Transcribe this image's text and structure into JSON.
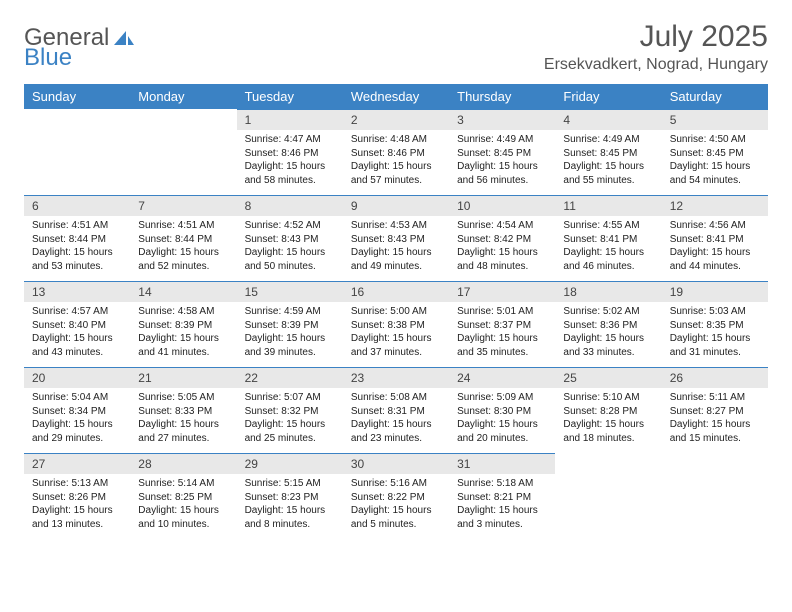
{
  "logo": {
    "text1": "General",
    "text2": "Blue",
    "text_color": "#555555",
    "accent_color": "#3b82c4"
  },
  "title": "July 2025",
  "location": "Ersekvadkert, Nograd, Hungary",
  "header_bg": "#3b82c4",
  "daynum_bg": "#e8e8e8",
  "day_headers": [
    "Sunday",
    "Monday",
    "Tuesday",
    "Wednesday",
    "Thursday",
    "Friday",
    "Saturday"
  ],
  "weeks": [
    [
      {
        "n": "",
        "sr": "",
        "ss": "",
        "dl": ""
      },
      {
        "n": "",
        "sr": "",
        "ss": "",
        "dl": ""
      },
      {
        "n": "1",
        "sr": "Sunrise: 4:47 AM",
        "ss": "Sunset: 8:46 PM",
        "dl": "Daylight: 15 hours and 58 minutes."
      },
      {
        "n": "2",
        "sr": "Sunrise: 4:48 AM",
        "ss": "Sunset: 8:46 PM",
        "dl": "Daylight: 15 hours and 57 minutes."
      },
      {
        "n": "3",
        "sr": "Sunrise: 4:49 AM",
        "ss": "Sunset: 8:45 PM",
        "dl": "Daylight: 15 hours and 56 minutes."
      },
      {
        "n": "4",
        "sr": "Sunrise: 4:49 AM",
        "ss": "Sunset: 8:45 PM",
        "dl": "Daylight: 15 hours and 55 minutes."
      },
      {
        "n": "5",
        "sr": "Sunrise: 4:50 AM",
        "ss": "Sunset: 8:45 PM",
        "dl": "Daylight: 15 hours and 54 minutes."
      }
    ],
    [
      {
        "n": "6",
        "sr": "Sunrise: 4:51 AM",
        "ss": "Sunset: 8:44 PM",
        "dl": "Daylight: 15 hours and 53 minutes."
      },
      {
        "n": "7",
        "sr": "Sunrise: 4:51 AM",
        "ss": "Sunset: 8:44 PM",
        "dl": "Daylight: 15 hours and 52 minutes."
      },
      {
        "n": "8",
        "sr": "Sunrise: 4:52 AM",
        "ss": "Sunset: 8:43 PM",
        "dl": "Daylight: 15 hours and 50 minutes."
      },
      {
        "n": "9",
        "sr": "Sunrise: 4:53 AM",
        "ss": "Sunset: 8:43 PM",
        "dl": "Daylight: 15 hours and 49 minutes."
      },
      {
        "n": "10",
        "sr": "Sunrise: 4:54 AM",
        "ss": "Sunset: 8:42 PM",
        "dl": "Daylight: 15 hours and 48 minutes."
      },
      {
        "n": "11",
        "sr": "Sunrise: 4:55 AM",
        "ss": "Sunset: 8:41 PM",
        "dl": "Daylight: 15 hours and 46 minutes."
      },
      {
        "n": "12",
        "sr": "Sunrise: 4:56 AM",
        "ss": "Sunset: 8:41 PM",
        "dl": "Daylight: 15 hours and 44 minutes."
      }
    ],
    [
      {
        "n": "13",
        "sr": "Sunrise: 4:57 AM",
        "ss": "Sunset: 8:40 PM",
        "dl": "Daylight: 15 hours and 43 minutes."
      },
      {
        "n": "14",
        "sr": "Sunrise: 4:58 AM",
        "ss": "Sunset: 8:39 PM",
        "dl": "Daylight: 15 hours and 41 minutes."
      },
      {
        "n": "15",
        "sr": "Sunrise: 4:59 AM",
        "ss": "Sunset: 8:39 PM",
        "dl": "Daylight: 15 hours and 39 minutes."
      },
      {
        "n": "16",
        "sr": "Sunrise: 5:00 AM",
        "ss": "Sunset: 8:38 PM",
        "dl": "Daylight: 15 hours and 37 minutes."
      },
      {
        "n": "17",
        "sr": "Sunrise: 5:01 AM",
        "ss": "Sunset: 8:37 PM",
        "dl": "Daylight: 15 hours and 35 minutes."
      },
      {
        "n": "18",
        "sr": "Sunrise: 5:02 AM",
        "ss": "Sunset: 8:36 PM",
        "dl": "Daylight: 15 hours and 33 minutes."
      },
      {
        "n": "19",
        "sr": "Sunrise: 5:03 AM",
        "ss": "Sunset: 8:35 PM",
        "dl": "Daylight: 15 hours and 31 minutes."
      }
    ],
    [
      {
        "n": "20",
        "sr": "Sunrise: 5:04 AM",
        "ss": "Sunset: 8:34 PM",
        "dl": "Daylight: 15 hours and 29 minutes."
      },
      {
        "n": "21",
        "sr": "Sunrise: 5:05 AM",
        "ss": "Sunset: 8:33 PM",
        "dl": "Daylight: 15 hours and 27 minutes."
      },
      {
        "n": "22",
        "sr": "Sunrise: 5:07 AM",
        "ss": "Sunset: 8:32 PM",
        "dl": "Daylight: 15 hours and 25 minutes."
      },
      {
        "n": "23",
        "sr": "Sunrise: 5:08 AM",
        "ss": "Sunset: 8:31 PM",
        "dl": "Daylight: 15 hours and 23 minutes."
      },
      {
        "n": "24",
        "sr": "Sunrise: 5:09 AM",
        "ss": "Sunset: 8:30 PM",
        "dl": "Daylight: 15 hours and 20 minutes."
      },
      {
        "n": "25",
        "sr": "Sunrise: 5:10 AM",
        "ss": "Sunset: 8:28 PM",
        "dl": "Daylight: 15 hours and 18 minutes."
      },
      {
        "n": "26",
        "sr": "Sunrise: 5:11 AM",
        "ss": "Sunset: 8:27 PM",
        "dl": "Daylight: 15 hours and 15 minutes."
      }
    ],
    [
      {
        "n": "27",
        "sr": "Sunrise: 5:13 AM",
        "ss": "Sunset: 8:26 PM",
        "dl": "Daylight: 15 hours and 13 minutes."
      },
      {
        "n": "28",
        "sr": "Sunrise: 5:14 AM",
        "ss": "Sunset: 8:25 PM",
        "dl": "Daylight: 15 hours and 10 minutes."
      },
      {
        "n": "29",
        "sr": "Sunrise: 5:15 AM",
        "ss": "Sunset: 8:23 PM",
        "dl": "Daylight: 15 hours and 8 minutes."
      },
      {
        "n": "30",
        "sr": "Sunrise: 5:16 AM",
        "ss": "Sunset: 8:22 PM",
        "dl": "Daylight: 15 hours and 5 minutes."
      },
      {
        "n": "31",
        "sr": "Sunrise: 5:18 AM",
        "ss": "Sunset: 8:21 PM",
        "dl": "Daylight: 15 hours and 3 minutes."
      },
      {
        "n": "",
        "sr": "",
        "ss": "",
        "dl": ""
      },
      {
        "n": "",
        "sr": "",
        "ss": "",
        "dl": ""
      }
    ]
  ]
}
